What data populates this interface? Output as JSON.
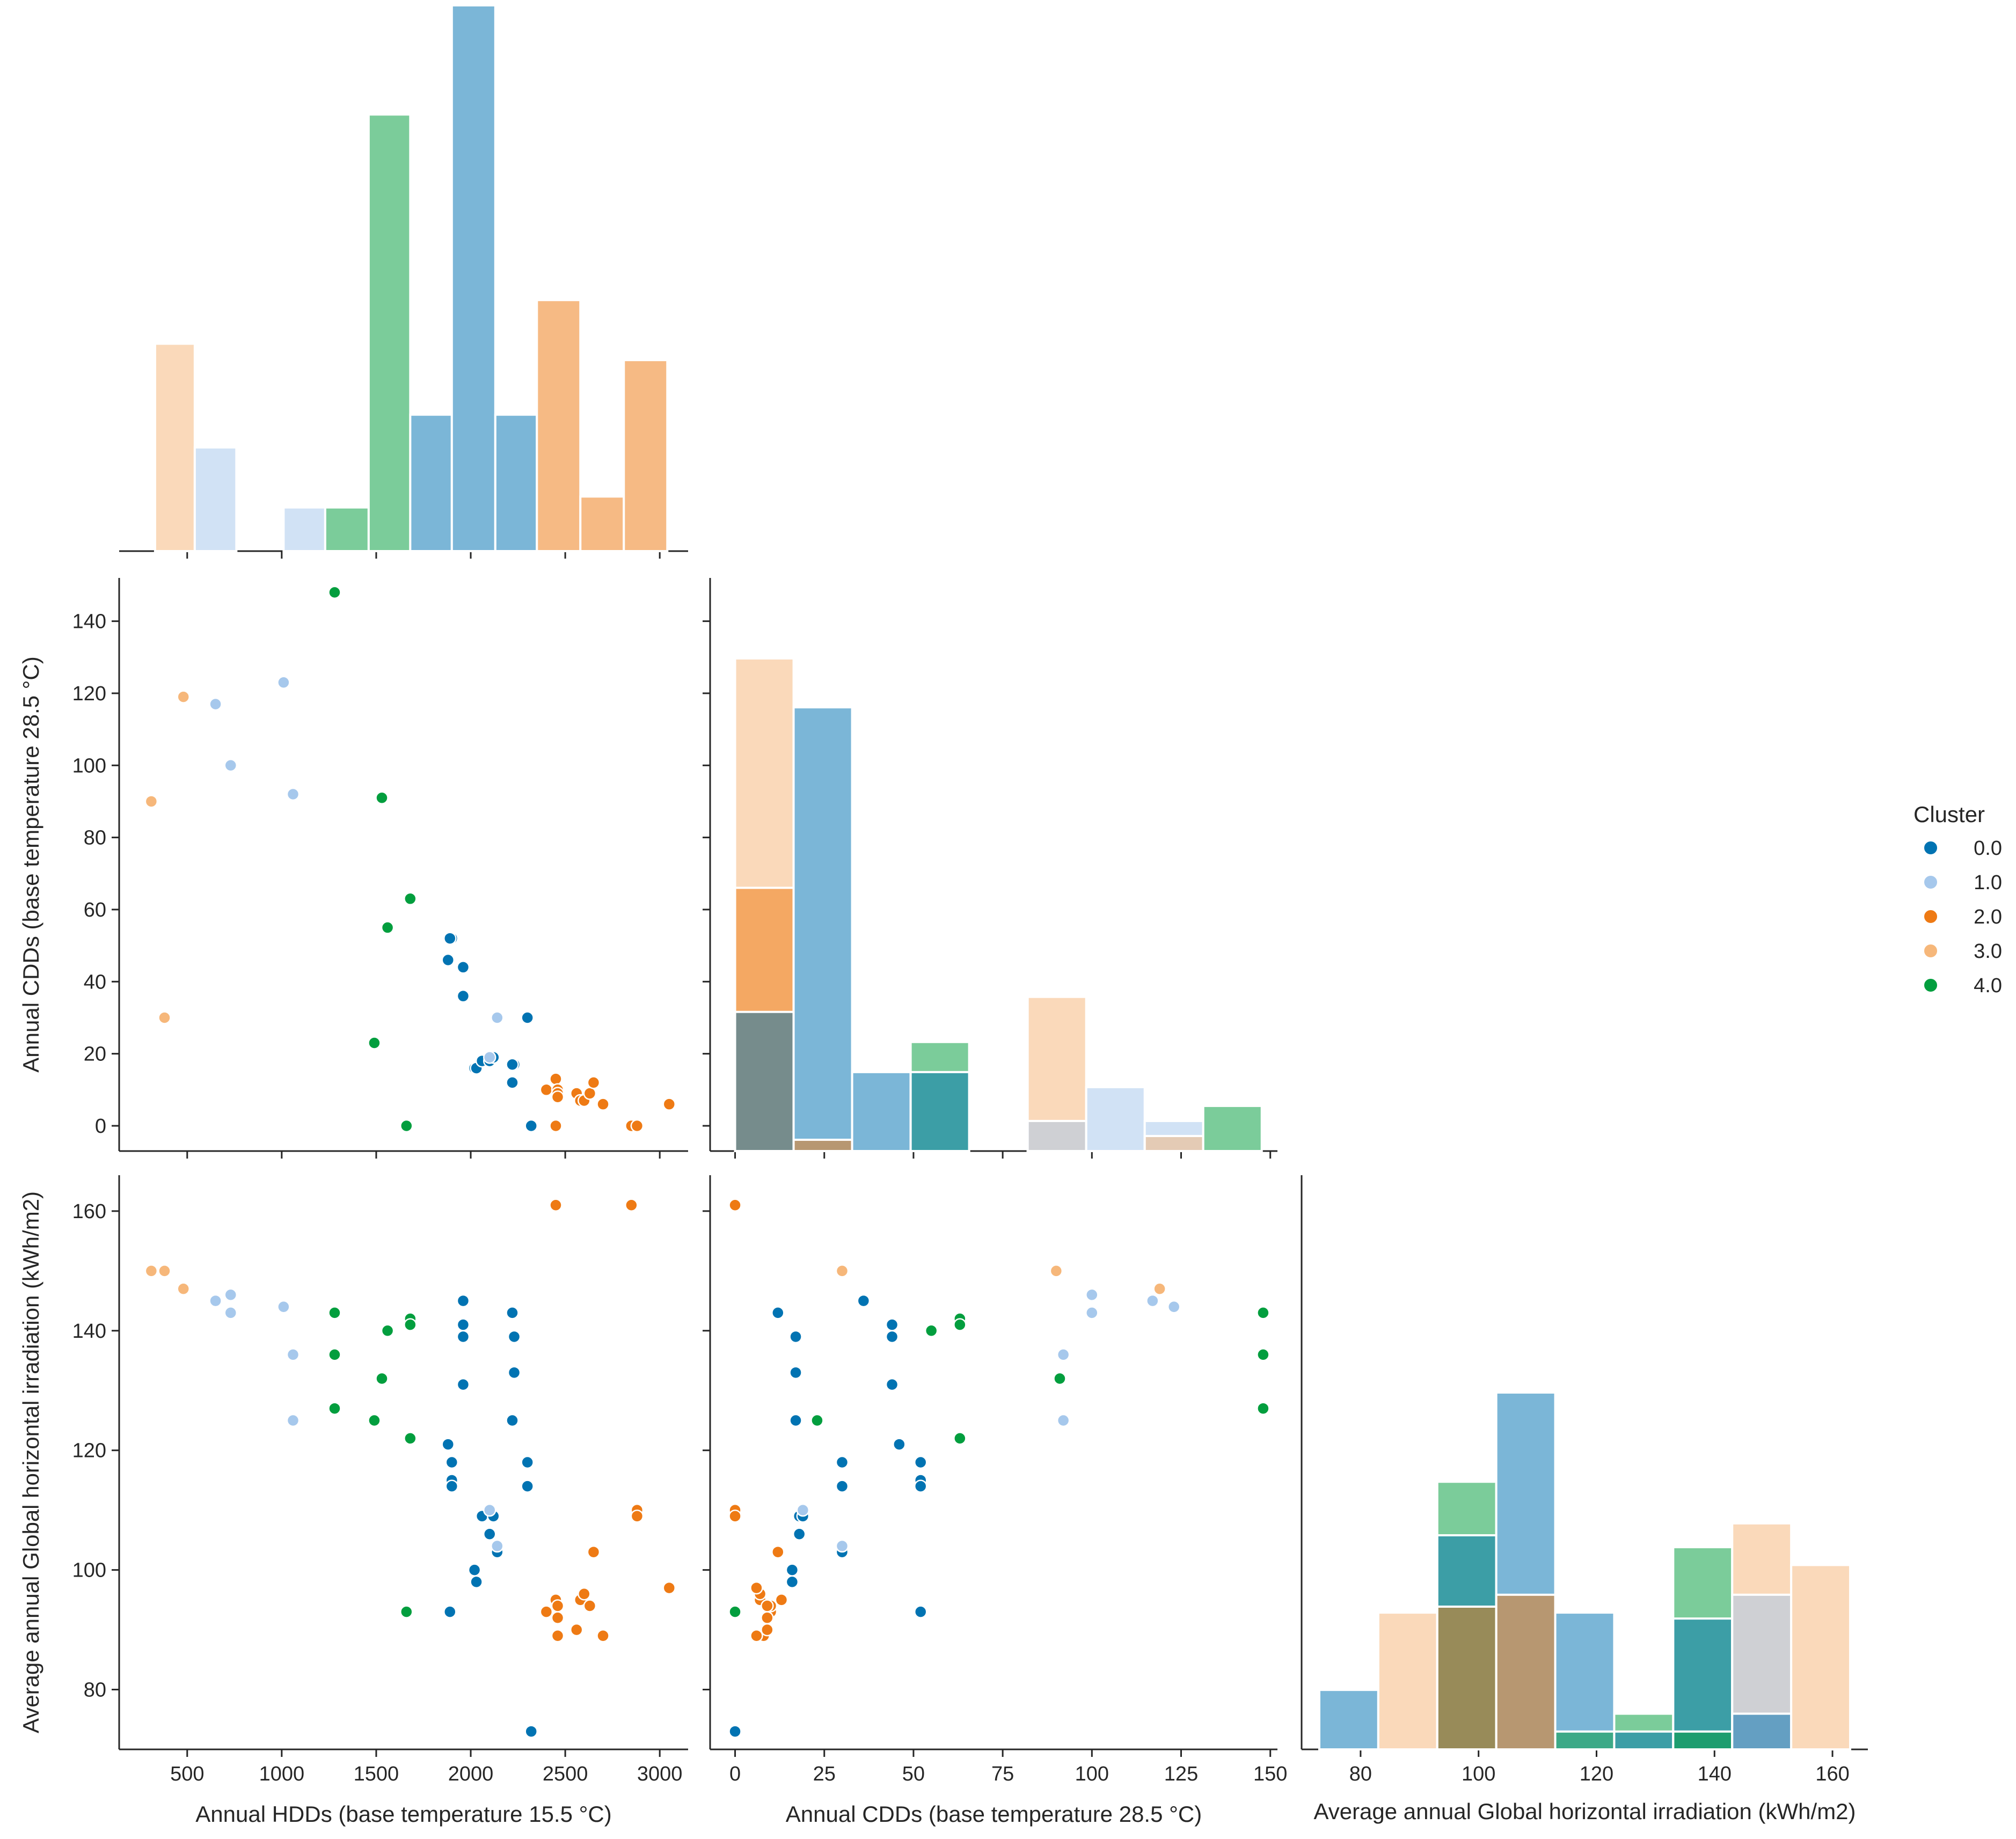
{
  "chart_data": {
    "type": "scatter",
    "title": "",
    "variables": [
      "Annual HDDs (base temperature 15.5 °C)",
      "Annual CDDs (base temperature 28.5 °C)",
      "Average annual Global horizontal irradiation (kWh/m2)"
    ],
    "axis_labels": {
      "hdd_x": "Annual HDDs (base temperature 15.5 °C)",
      "cdd_x": "Annual CDDs (base temperature 28.5 °C)",
      "ghi_x": "Average annual Global horizontal irradiation (kWh/m2)",
      "cdd_y": "Annual CDDs (base temperature 28.5 °C)",
      "ghi_y": "Average annual Global horizontal irradiation (kWh/m2)"
    },
    "ticks": {
      "hdd": [
        "500",
        "1000",
        "1500",
        "2000",
        "2500",
        "3000"
      ],
      "cdd": [
        "0",
        "25",
        "50",
        "75",
        "100",
        "125",
        "150"
      ],
      "cdd_y": [
        "0",
        "20",
        "40",
        "60",
        "80",
        "100",
        "120",
        "140"
      ],
      "ghi": [
        "80",
        "100",
        "120",
        "140",
        "160"
      ]
    },
    "ranges": {
      "hdd": [
        140,
        3150
      ],
      "cdd": [
        -7,
        152
      ],
      "ghi": [
        70,
        166
      ]
    },
    "legend": {
      "title": "Cluster",
      "position": "right",
      "entries": [
        {
          "label": "0.0",
          "color": "#0173b2"
        },
        {
          "label": "1.0",
          "color": "#a6c8ec"
        },
        {
          "label": "2.0",
          "color": "#ee7a14"
        },
        {
          "label": "3.0",
          "color": "#f6b77a"
        },
        {
          "label": "4.0",
          "color": "#029e3e"
        }
      ]
    },
    "series": [
      {
        "name": "0.0",
        "points": [
          {
            "hdd": 1880,
            "cdd": 46,
            "ghi": 121
          },
          {
            "hdd": 1900,
            "cdd": 52,
            "ghi": 118
          },
          {
            "hdd": 1900,
            "cdd": 52,
            "ghi": 115
          },
          {
            "hdd": 1900,
            "cdd": 52,
            "ghi": 114
          },
          {
            "hdd": 1960,
            "cdd": 44,
            "ghi": 141
          },
          {
            "hdd": 1960,
            "cdd": 44,
            "ghi": 139
          },
          {
            "hdd": 1960,
            "cdd": 36,
            "ghi": 145
          },
          {
            "hdd": 1960,
            "cdd": 44,
            "ghi": 131
          },
          {
            "hdd": 2020,
            "cdd": 16,
            "ghi": 100
          },
          {
            "hdd": 2030,
            "cdd": 16,
            "ghi": 98
          },
          {
            "hdd": 2060,
            "cdd": 18,
            "ghi": 109
          },
          {
            "hdd": 2100,
            "cdd": 18,
            "ghi": 106
          },
          {
            "hdd": 2120,
            "cdd": 19,
            "ghi": 109
          },
          {
            "hdd": 2140,
            "cdd": 30,
            "ghi": 103
          },
          {
            "hdd": 2220,
            "cdd": 12,
            "ghi": 143
          },
          {
            "hdd": 2230,
            "cdd": 17,
            "ghi": 139
          },
          {
            "hdd": 2230,
            "cdd": 17,
            "ghi": 133
          },
          {
            "hdd": 2220,
            "cdd": 17,
            "ghi": 125
          },
          {
            "hdd": 2300,
            "cdd": 30,
            "ghi": 118
          },
          {
            "hdd": 2300,
            "cdd": 30,
            "ghi": 114
          },
          {
            "hdd": 1890,
            "cdd": 52,
            "ghi": 93
          },
          {
            "hdd": 2320,
            "cdd": 0,
            "ghi": 73
          }
        ]
      },
      {
        "name": "1.0",
        "points": [
          {
            "hdd": 650,
            "cdd": 117,
            "ghi": 145
          },
          {
            "hdd": 730,
            "cdd": 100,
            "ghi": 146
          },
          {
            "hdd": 730,
            "cdd": 100,
            "ghi": 143
          },
          {
            "hdd": 1010,
            "cdd": 123,
            "ghi": 144
          },
          {
            "hdd": 1060,
            "cdd": 92,
            "ghi": 136
          },
          {
            "hdd": 1060,
            "cdd": 92,
            "ghi": 125
          },
          {
            "hdd": 2140,
            "cdd": 30,
            "ghi": 104
          },
          {
            "hdd": 2100,
            "cdd": 19,
            "ghi": 110
          }
        ]
      },
      {
        "name": "2.0",
        "points": [
          {
            "hdd": 2450,
            "cdd": 0,
            "ghi": 161
          },
          {
            "hdd": 2850,
            "cdd": 0,
            "ghi": 161
          },
          {
            "hdd": 2880,
            "cdd": 0,
            "ghi": 110
          },
          {
            "hdd": 2880,
            "cdd": 0,
            "ghi": 109
          },
          {
            "hdd": 2400,
            "cdd": 10,
            "ghi": 93
          },
          {
            "hdd": 2450,
            "cdd": 13,
            "ghi": 95
          },
          {
            "hdd": 2460,
            "cdd": 10,
            "ghi": 94
          },
          {
            "hdd": 2460,
            "cdd": 9,
            "ghi": 92
          },
          {
            "hdd": 2460,
            "cdd": 8,
            "ghi": 89
          },
          {
            "hdd": 2560,
            "cdd": 9,
            "ghi": 90
          },
          {
            "hdd": 2580,
            "cdd": 7,
            "ghi": 95
          },
          {
            "hdd": 2600,
            "cdd": 7,
            "ghi": 96
          },
          {
            "hdd": 2630,
            "cdd": 9,
            "ghi": 94
          },
          {
            "hdd": 2650,
            "cdd": 12,
            "ghi": 103
          },
          {
            "hdd": 2700,
            "cdd": 6,
            "ghi": 89
          },
          {
            "hdd": 3050,
            "cdd": 6,
            "ghi": 97
          }
        ]
      },
      {
        "name": "3.0",
        "points": [
          {
            "hdd": 310,
            "cdd": 90,
            "ghi": 150
          },
          {
            "hdd": 380,
            "cdd": 30,
            "ghi": 150
          },
          {
            "hdd": 480,
            "cdd": 119,
            "ghi": 147
          }
        ]
      },
      {
        "name": "4.0",
        "points": [
          {
            "hdd": 1280,
            "cdd": 148,
            "ghi": 143
          },
          {
            "hdd": 1280,
            "cdd": 148,
            "ghi": 136
          },
          {
            "hdd": 1280,
            "cdd": 148,
            "ghi": 127
          },
          {
            "hdd": 1490,
            "cdd": 23,
            "ghi": 125
          },
          {
            "hdd": 1530,
            "cdd": 91,
            "ghi": 132
          },
          {
            "hdd": 1560,
            "cdd": 55,
            "ghi": 140
          },
          {
            "hdd": 1680,
            "cdd": 63,
            "ghi": 142
          },
          {
            "hdd": 1680,
            "cdd": 63,
            "ghi": 141
          },
          {
            "hdd": 1680,
            "cdd": 63,
            "ghi": 122
          },
          {
            "hdd": 1660,
            "cdd": 0,
            "ghi": 93
          }
        ]
      }
    ],
    "histograms": {
      "hdd": {
        "ymax": 50,
        "bins": [
          {
            "x0": 330,
            "x1": 540,
            "cluster": "3.0",
            "count": 19
          },
          {
            "x0": 540,
            "x1": 760,
            "cluster": "1.0",
            "count": 9.5
          },
          {
            "x0": 1010,
            "x1": 1230,
            "cluster": "1.0",
            "count": 4
          },
          {
            "x0": 1230,
            "x1": 1460,
            "cluster": "4.0",
            "count": 4
          },
          {
            "x0": 1460,
            "x1": 1680,
            "cluster": "4.0",
            "count": 40
          },
          {
            "x0": 1680,
            "x1": 1900,
            "cluster": "0.0",
            "count": 12.5
          },
          {
            "x0": 1900,
            "x1": 2130,
            "cluster": "0.0",
            "count": 50
          },
          {
            "x0": 2130,
            "x1": 2350,
            "cluster": "0.0",
            "count": 12.5
          },
          {
            "x0": 2350,
            "x1": 2580,
            "cluster": "2.0",
            "count": 23
          },
          {
            "x0": 2580,
            "x1": 2810,
            "cluster": "2.0",
            "count": 5
          },
          {
            "x0": 2810,
            "x1": 3040,
            "cluster": "2.0",
            "count": 17.5
          }
        ]
      },
      "cdd": {
        "ymax": 131,
        "bins": [
          {
            "x0": 0,
            "x1": 16.4,
            "stack": [
              {
                "cluster": "3.0",
                "count": 131
              },
              {
                "cluster": "2.0",
                "count": 70
              },
              {
                "cluster": "0.0",
                "count": 37
              }
            ]
          },
          {
            "x0": 16.4,
            "x1": 32.8,
            "stack": [
              {
                "cluster": "0.0",
                "count": 118
              },
              {
                "cluster": "2.0",
                "count": 3
              }
            ]
          },
          {
            "x0": 32.8,
            "x1": 49.2,
            "stack": [
              {
                "cluster": "0.0",
                "count": 21
              }
            ]
          },
          {
            "x0": 49.2,
            "x1": 65.6,
            "stack": [
              {
                "cluster": "4.0",
                "count": 29
              },
              {
                "cluster": "0.0",
                "count": 21
              }
            ]
          },
          {
            "x0": 82,
            "x1": 98.4,
            "stack": [
              {
                "cluster": "3.0",
                "count": 41
              },
              {
                "cluster": "1.0",
                "count": 8
              }
            ]
          },
          {
            "x0": 98.4,
            "x1": 114.8,
            "stack": [
              {
                "cluster": "1.0",
                "count": 17
              }
            ]
          },
          {
            "x0": 114.8,
            "x1": 131.2,
            "stack": [
              {
                "cluster": "1.0",
                "count": 8
              },
              {
                "cluster": "3.0",
                "count": 4
              }
            ]
          },
          {
            "x0": 131.2,
            "x1": 147.6,
            "stack": [
              {
                "cluster": "4.0",
                "count": 12
              }
            ]
          }
        ]
      },
      "ghi": {
        "ymax": 60,
        "bins": [
          {
            "x0": 73,
            "x1": 83,
            "stack": [
              {
                "cluster": "0.0",
                "count": 10
              }
            ]
          },
          {
            "x0": 83,
            "x1": 93,
            "stack": [
              {
                "cluster": "3.0",
                "count": 23
              }
            ]
          },
          {
            "x0": 93,
            "x1": 103,
            "stack": [
              {
                "cluster": "4.0",
                "count": 45
              },
              {
                "cluster": "0.0",
                "count": 36
              },
              {
                "cluster": "2.0",
                "count": 24
              }
            ]
          },
          {
            "x0": 103,
            "x1": 113,
            "stack": [
              {
                "cluster": "0.0",
                "count": 60
              },
              {
                "cluster": "2.0",
                "count": 26
              }
            ]
          },
          {
            "x0": 113,
            "x1": 123,
            "stack": [
              {
                "cluster": "0.0",
                "count": 23
              },
              {
                "cluster": "4.0",
                "count": 3
              }
            ]
          },
          {
            "x0": 123,
            "x1": 133,
            "stack": [
              {
                "cluster": "4.0",
                "count": 6
              },
              {
                "cluster": "0.0",
                "count": 3
              }
            ]
          },
          {
            "x0": 133,
            "x1": 143,
            "stack": [
              {
                "cluster": "4.0",
                "count": 34
              },
              {
                "cluster": "0.0",
                "count": 22
              },
              {
                "cluster": "4.0",
                "count": 3
              }
            ]
          },
          {
            "x0": 143,
            "x1": 153,
            "stack": [
              {
                "cluster": "3.0",
                "count": 38
              },
              {
                "cluster": "1.0",
                "count": 26
              },
              {
                "cluster": "0.0",
                "count": 6
              }
            ]
          },
          {
            "x0": 153,
            "x1": 163,
            "stack": [
              {
                "cluster": "3.0",
                "count": 31
              }
            ]
          }
        ]
      }
    }
  }
}
